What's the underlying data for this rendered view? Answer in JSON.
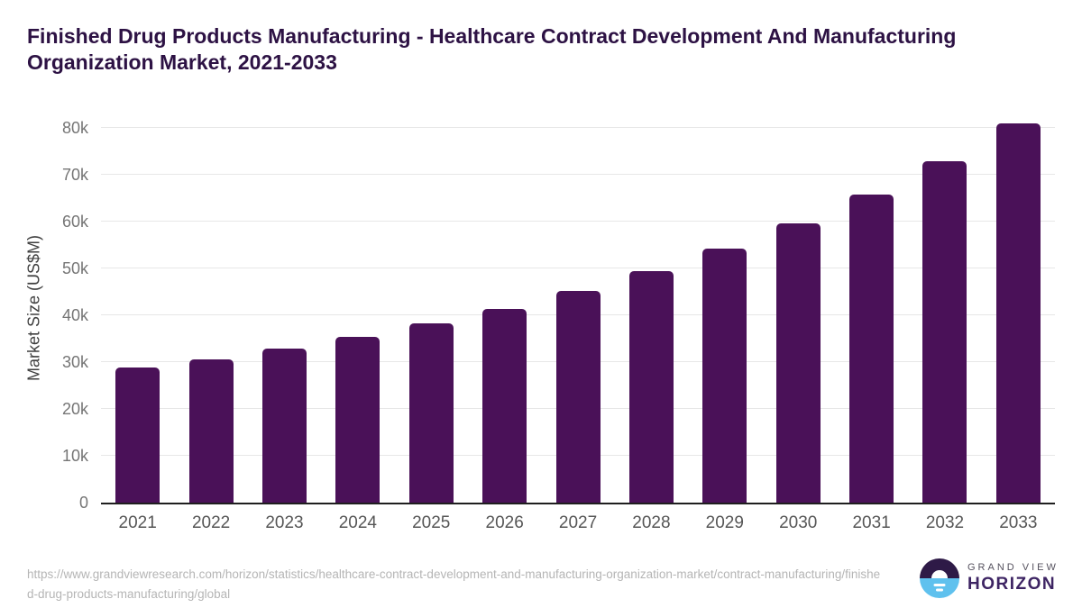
{
  "header": {
    "title": "Finished Drug Products Manufacturing - Healthcare Contract Development And Manufacturing Organization Market, 2021-2033"
  },
  "chart_data": {
    "type": "bar",
    "title": "Finished Drug Products Manufacturing - Healthcare Contract Development And Manufacturing Organization Market, 2021-2033",
    "categories": [
      "2021",
      "2022",
      "2023",
      "2024",
      "2025",
      "2026",
      "2027",
      "2028",
      "2029",
      "2030",
      "2031",
      "2032",
      "2033"
    ],
    "values": [
      28800,
      30500,
      32900,
      35400,
      38200,
      41400,
      45100,
      49400,
      54300,
      59600,
      65800,
      72900,
      80900
    ],
    "xlabel": "",
    "ylabel": "Market Size (US$M)",
    "ylim": [
      0,
      80000
    ],
    "ytick_step": 10000,
    "ytick_labels": [
      "0",
      "10k",
      "20k",
      "30k",
      "40k",
      "50k",
      "60k",
      "70k",
      "80k"
    ],
    "grid": true,
    "legend_position": "none",
    "bar_color": "#4a1158"
  },
  "footer": {
    "source_url": "https://www.grandviewresearch.com/horizon/statistics/healthcare-contract-development-and-manufacturing-organization-market/contract-manufacturing/finished-drug-products-manufacturing/global",
    "logo": {
      "top_text": "GRAND VIEW",
      "bottom_text": "HORIZON",
      "icon_top_color": "#2e1a47",
      "icon_bottom_color": "#5fc1ee"
    }
  },
  "colors": {
    "title": "#2d1244",
    "bar": "#4a1158",
    "gridline": "#e7e7e7",
    "axis_line": "#1f1f1f",
    "y_tick_text": "#757575",
    "x_tick_text": "#565656",
    "url_text": "#b5b5b5"
  }
}
